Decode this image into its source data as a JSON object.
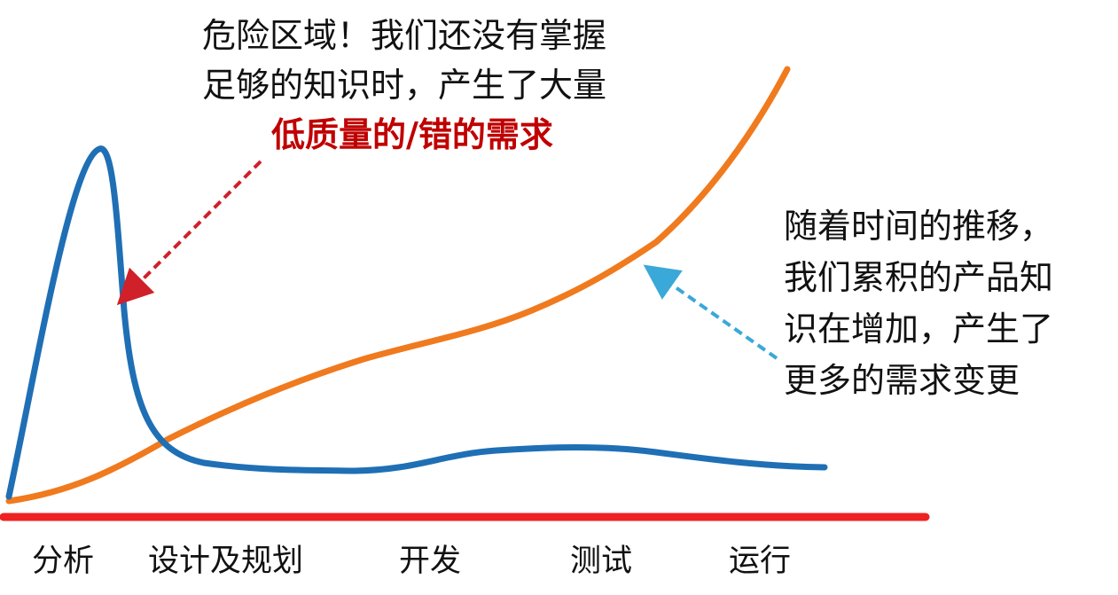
{
  "annotation_danger": {
    "line1": "危险区域！我们还没有掌握",
    "line2": "足够的知识时，产生了大量",
    "line3": "低质量的/错的需求"
  },
  "annotation_knowledge": {
    "line1": "随着时间的推移，",
    "line2": "我们累积的产品知",
    "line3": "识在增加，产生了",
    "line4": "更多的需求变更"
  },
  "phases": [
    "分析",
    "设计及规划",
    "开发",
    "测试",
    "运行"
  ],
  "colors": {
    "requirements_curve": "#1f6fb5",
    "knowledge_curve": "#f07a1e",
    "timeline": "#ee2222",
    "danger_arrow": "#d0202a",
    "knowledge_arrow": "#3aa8d8",
    "emphasis_text": "#c00000"
  }
}
